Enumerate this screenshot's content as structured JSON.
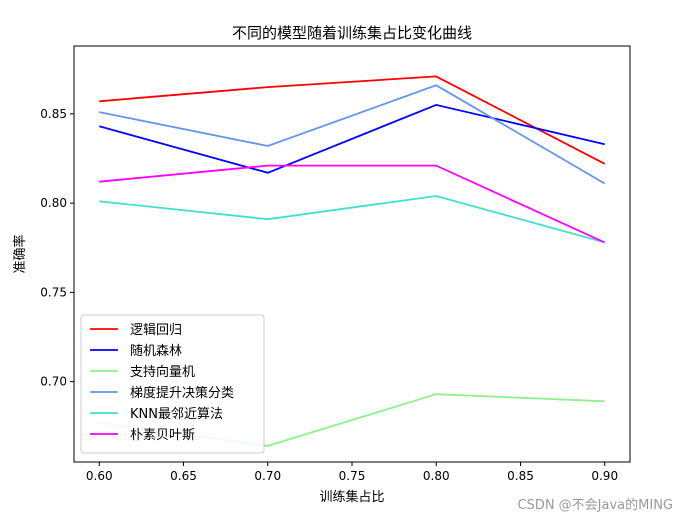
{
  "chart_data": {
    "type": "line",
    "title": "不同的模型随着训练集占比变化曲线",
    "xlabel": "训练集占比",
    "ylabel": "准确率",
    "x": [
      0.6,
      0.7,
      0.8,
      0.9
    ],
    "xlim": [
      0.585,
      0.915
    ],
    "ylim": [
      0.655,
      0.888
    ],
    "xticks": [
      "0.60",
      "0.65",
      "0.70",
      "0.75",
      "0.80",
      "0.85",
      "0.90"
    ],
    "yticks": [
      "0.70",
      "0.75",
      "0.80",
      "0.85"
    ],
    "grid": false,
    "legend_position": "lower-left",
    "series": [
      {
        "name": "逻辑回归",
        "color": "#ff0000",
        "values": [
          0.857,
          0.865,
          0.871,
          0.822
        ]
      },
      {
        "name": "随机森林",
        "color": "#0000ff",
        "values": [
          0.843,
          0.817,
          0.855,
          0.833
        ]
      },
      {
        "name": "支持向量机",
        "color": "#90ee90",
        "values": [
          0.677,
          0.664,
          0.693,
          0.689
        ]
      },
      {
        "name": "梯度提升决策分类",
        "color": "#6495ed",
        "values": [
          0.851,
          0.832,
          0.866,
          0.811
        ]
      },
      {
        "name": "KNN最邻近算法",
        "color": "#40e0d0",
        "values": [
          0.801,
          0.791,
          0.804,
          0.778
        ]
      },
      {
        "name": "朴素贝叶斯",
        "color": "#ff00ff",
        "values": [
          0.812,
          0.821,
          0.821,
          0.778
        ]
      }
    ]
  },
  "watermark": "CSDN @不会Java的MING"
}
